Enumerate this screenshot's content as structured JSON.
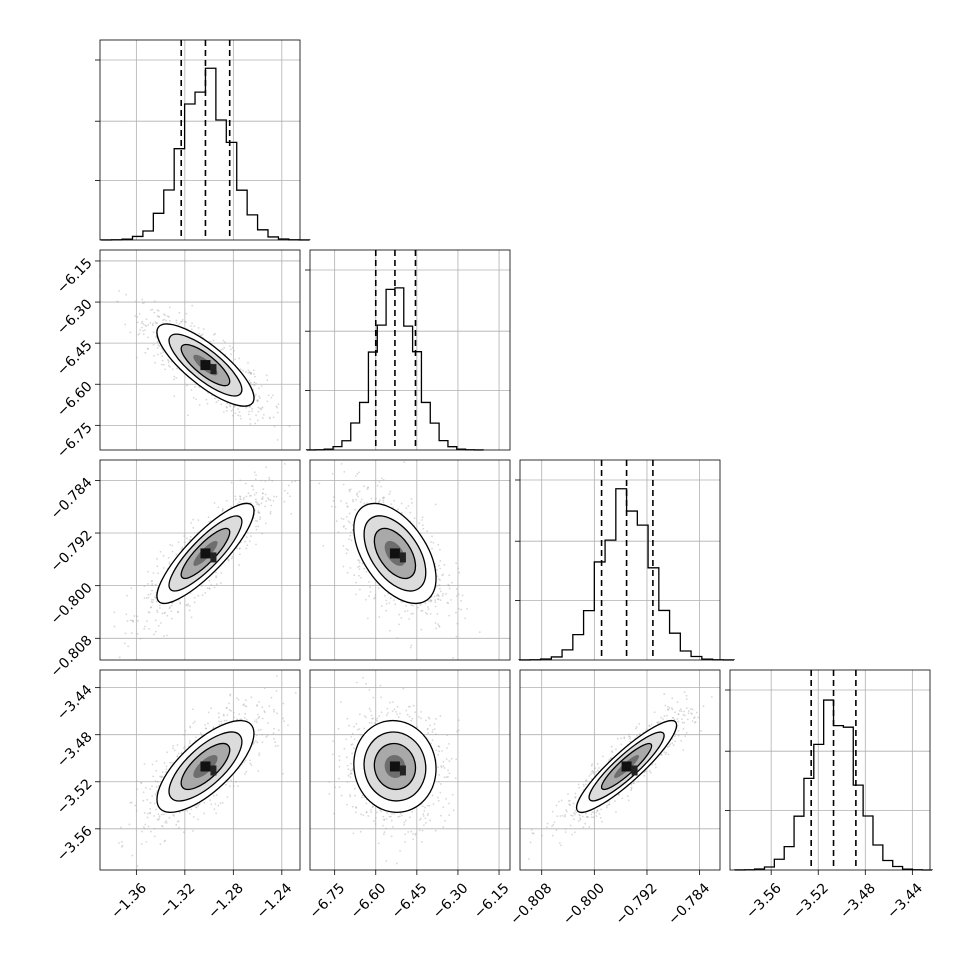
{
  "chart_data": {
    "type": "corner",
    "title": "",
    "grid": true,
    "colors": {
      "hist": "#000000",
      "points": "#a8a8a8",
      "grid": "#b0b0b0"
    },
    "parameters": [
      {
        "label": "",
        "range": [
          -1.39,
          -1.225
        ],
        "ticks": [
          -1.36,
          -1.32,
          -1.28,
          -1.24
        ],
        "tick_labels": [
          "−1.36",
          "−1.32",
          "−1.28",
          "−1.24"
        ],
        "median": -1.303,
        "sigma": 0.02,
        "quantiles": [
          -1.323,
          -1.303,
          -1.283
        ]
      },
      {
        "label": "",
        "range": [
          -6.84,
          -6.11
        ],
        "ticks": [
          -6.75,
          -6.6,
          -6.45,
          -6.3,
          -6.15
        ],
        "tick_labels": [
          "−6.75",
          "−6.60",
          "−6.45",
          "−6.30",
          "−6.15"
        ],
        "median": -6.53,
        "sigma": 0.075,
        "quantiles": [
          -6.6,
          -6.53,
          -6.455
        ]
      },
      {
        "label": "",
        "range": [
          -0.8113,
          -0.7809
        ],
        "ticks": [
          -0.808,
          -0.8,
          -0.792,
          -0.784
        ],
        "tick_labels": [
          "−0.808",
          "−0.800",
          "−0.792",
          "−0.784"
        ],
        "median": -0.7951,
        "sigma": 0.0038,
        "quantiles": [
          -0.7989,
          -0.7951,
          -0.7911
        ]
      },
      {
        "label": "",
        "range": [
          -3.595,
          -3.425
        ],
        "ticks": [
          -3.56,
          -3.52,
          -3.48,
          -3.44
        ],
        "tick_labels": [
          "−3.56",
          "−3.52",
          "−3.48",
          "−3.44"
        ],
        "median": -3.507,
        "sigma": 0.0195,
        "quantiles": [
          -3.526,
          -3.507,
          -3.488
        ]
      }
    ],
    "correlations": [
      {
        "pair": [
          1,
          0
        ],
        "rho": -0.8
      },
      {
        "pair": [
          2,
          0
        ],
        "rho": 0.85
      },
      {
        "pair": [
          2,
          1
        ],
        "rho": -0.5
      },
      {
        "pair": [
          3,
          0
        ],
        "rho": 0.72
      },
      {
        "pair": [
          3,
          1
        ],
        "rho": -0.05
      },
      {
        "pair": [
          3,
          2
        ],
        "rho": 0.9
      }
    ],
    "histogram_bins": 20,
    "contour_levels": [
      0.5,
      1.0,
      1.5,
      2.0
    ]
  }
}
